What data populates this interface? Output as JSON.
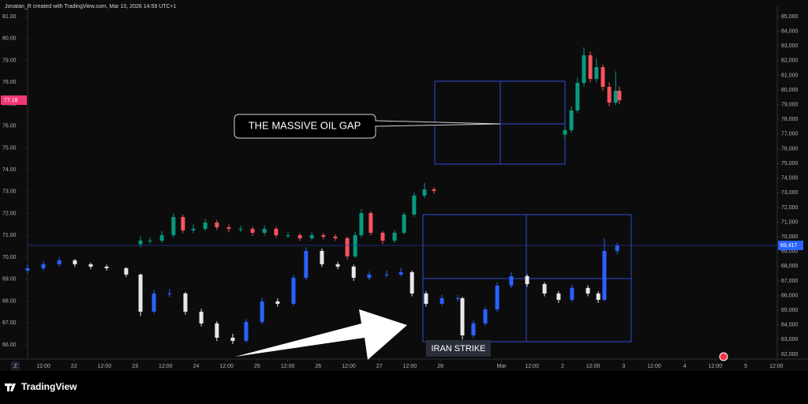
{
  "chart_data": {
    "type": "candlestick",
    "title": "Jonatan_R created with TradingView.com, Mar 10, 2026 14:59 UTC+1",
    "brand": "TradingView",
    "scale_button": "Z",
    "annotations": [
      "THE MASSIVE OIL GAP",
      "IRAN STRIKE"
    ],
    "xlim": [
      0.483,
      25.03
    ],
    "xticks": [
      {
        "value": 1,
        "label": "12:00"
      },
      {
        "value": 2,
        "label": "22"
      },
      {
        "value": 3,
        "label": "12:00"
      },
      {
        "value": 4,
        "label": "23"
      },
      {
        "value": 5,
        "label": "12:00"
      },
      {
        "value": 6,
        "label": "24"
      },
      {
        "value": 7,
        "label": "12:00"
      },
      {
        "value": 8,
        "label": "25"
      },
      {
        "value": 9,
        "label": "12:00"
      },
      {
        "value": 10,
        "label": "26"
      },
      {
        "value": 11,
        "label": "12:00"
      },
      {
        "value": 12,
        "label": "27"
      },
      {
        "value": 13,
        "label": "12:00"
      },
      {
        "value": 14,
        "label": "28"
      },
      {
        "value": 16,
        "label": "Mar"
      },
      {
        "value": 17,
        "label": "12:00"
      },
      {
        "value": 18,
        "label": "2"
      },
      {
        "value": 19,
        "label": "12:00"
      },
      {
        "value": 20,
        "label": "3"
      },
      {
        "value": 21,
        "label": "12:00"
      },
      {
        "value": 22,
        "label": "4"
      },
      {
        "value": 23,
        "label": "12:00"
      },
      {
        "value": 24,
        "label": "5"
      },
      {
        "value": 25,
        "label": "12:00"
      }
    ],
    "ylim": [
      65.35,
      81.47
    ],
    "yticks": [
      {
        "value": 66,
        "label": "66.00"
      },
      {
        "value": 67,
        "label": "67.00"
      },
      {
        "value": 68,
        "label": "68.00"
      },
      {
        "value": 69,
        "label": "69.00"
      },
      {
        "value": 70,
        "label": "70.00"
      },
      {
        "value": 71,
        "label": "71.00"
      },
      {
        "value": 72,
        "label": "72.00"
      },
      {
        "value": 73,
        "label": "73.00"
      },
      {
        "value": 74,
        "label": "74.00"
      },
      {
        "value": 75,
        "label": "75.00"
      },
      {
        "value": 76,
        "label": "76.00"
      },
      {
        "value": 77,
        "label": "77.00"
      },
      {
        "value": 78,
        "label": "78.00"
      },
      {
        "value": 79,
        "label": "79.00"
      },
      {
        "value": 80,
        "label": "80.00"
      },
      {
        "value": 81,
        "label": "81.00"
      }
    ],
    "y2lim": [
      61677,
      85699
    ],
    "y2ticks": [
      {
        "value": 62000,
        "label": "62,000"
      },
      {
        "value": 63000,
        "label": "63,000"
      },
      {
        "value": 64000,
        "label": "64,000"
      },
      {
        "value": 65000,
        "label": "65,000"
      },
      {
        "value": 66000,
        "label": "66,000"
      },
      {
        "value": 67000,
        "label": "67,000"
      },
      {
        "value": 68000,
        "label": "68,000"
      },
      {
        "value": 69000,
        "label": "69,000"
      },
      {
        "value": 70000,
        "label": "70,000"
      },
      {
        "value": 71000,
        "label": "71,000"
      },
      {
        "value": 72000,
        "label": "72,000"
      },
      {
        "value": 73000,
        "label": "73,000"
      },
      {
        "value": 74000,
        "label": "74,000"
      },
      {
        "value": 75000,
        "label": "75,000"
      },
      {
        "value": 76000,
        "label": "76,000"
      },
      {
        "value": 77000,
        "label": "77,000"
      },
      {
        "value": 78000,
        "label": "78,000"
      },
      {
        "value": 79000,
        "label": "79,000"
      },
      {
        "value": 80000,
        "label": "80,000"
      },
      {
        "value": 81000,
        "label": "81,000"
      },
      {
        "value": 82000,
        "label": "82,000"
      },
      {
        "value": 83000,
        "label": "83,000"
      },
      {
        "value": 84000,
        "label": "84,000"
      },
      {
        "value": 85000,
        "label": "85,000"
      }
    ],
    "series": [
      {
        "axis": "y",
        "up_color": "#089981",
        "down_color": "#f7525f",
        "last_price": 77.18,
        "x": [
          4.18,
          4.49,
          4.88,
          5.26,
          5.57,
          5.91,
          6.3,
          6.68,
          7.07,
          7.46,
          7.85,
          8.24,
          8.62,
          9.01,
          9.4,
          9.79,
          10.17,
          10.56,
          10.95,
          11.21,
          11.41,
          11.72,
          12.11,
          12.5,
          12.81,
          13.14,
          13.48,
          13.79,
          18.08,
          18.29,
          18.49,
          18.7,
          18.91,
          19.11,
          19.32,
          19.53,
          19.74,
          19.86
        ],
        "ohlc": [
          [
            70.6,
            70.95,
            70.45,
            70.76
          ],
          [
            70.76,
            70.9,
            70.6,
            70.76
          ],
          [
            70.76,
            71.2,
            70.65,
            71.01
          ],
          [
            71.01,
            72.0,
            70.9,
            71.84
          ],
          [
            71.84,
            71.95,
            71.1,
            71.23
          ],
          [
            71.23,
            71.5,
            71.1,
            71.3
          ],
          [
            71.3,
            71.75,
            71.2,
            71.59
          ],
          [
            71.59,
            71.7,
            71.25,
            71.37
          ],
          [
            71.37,
            71.5,
            71.15,
            71.3
          ],
          [
            71.3,
            71.45,
            71.15,
            71.3
          ],
          [
            71.3,
            71.4,
            70.98,
            71.12
          ],
          [
            71.12,
            71.45,
            71.0,
            71.3
          ],
          [
            71.3,
            71.4,
            70.9,
            71.01
          ],
          [
            71.01,
            71.15,
            70.88,
            71.01
          ],
          [
            71.01,
            71.1,
            70.75,
            70.87
          ],
          [
            70.87,
            71.15,
            70.78,
            71.01
          ],
          [
            71.01,
            71.1,
            70.82,
            70.94
          ],
          [
            70.94,
            71.05,
            70.75,
            70.87
          ],
          [
            70.87,
            70.95,
            69.9,
            70.04
          ],
          [
            70.04,
            71.15,
            69.95,
            71.01
          ],
          [
            71.01,
            72.2,
            70.9,
            72.02
          ],
          [
            72.02,
            72.1,
            71.0,
            71.12
          ],
          [
            71.12,
            71.2,
            70.6,
            70.76
          ],
          [
            70.76,
            71.25,
            70.65,
            71.12
          ],
          [
            71.12,
            72.05,
            71.05,
            71.95
          ],
          [
            71.95,
            72.95,
            71.85,
            72.82
          ],
          [
            72.82,
            73.4,
            72.7,
            73.1
          ],
          [
            73.1,
            73.2,
            72.9,
            73.03
          ],
          [
            75.6,
            76.0,
            75.4,
            75.81
          ],
          [
            75.81,
            76.9,
            75.7,
            76.71
          ],
          [
            76.71,
            78.2,
            76.6,
            77.97
          ],
          [
            77.97,
            79.6,
            77.8,
            79.23
          ],
          [
            79.23,
            79.4,
            78.0,
            78.15
          ],
          [
            78.15,
            79.1,
            78.0,
            78.69
          ],
          [
            78.69,
            78.8,
            77.6,
            77.79
          ],
          [
            77.79,
            78.0,
            76.9,
            77.07
          ],
          [
            77.07,
            78.5,
            76.95,
            77.61
          ],
          [
            77.61,
            77.8,
            77.0,
            77.18
          ]
        ]
      },
      {
        "axis": "y2",
        "up_color": "#2962ff",
        "down_color": "#e8e8e8",
        "last_price": {
          "value": 69417,
          "label": "69,417"
        },
        "x": [
          0.48,
          1.0,
          1.52,
          2.03,
          2.55,
          3.07,
          3.71,
          4.18,
          4.62,
          5.13,
          5.65,
          6.17,
          6.68,
          7.2,
          7.64,
          8.16,
          8.67,
          9.19,
          9.6,
          10.12,
          10.64,
          11.16,
          11.67,
          12.24,
          12.71,
          13.07,
          13.53,
          14.05,
          14.57,
          14.72,
          15.08,
          15.47,
          15.86,
          16.32,
          16.84,
          17.41,
          17.87,
          18.31,
          18.83,
          19.17,
          19.37,
          19.79
        ],
        "ohlc": [
          [
            67700,
            68100,
            67500,
            67860
          ],
          [
            67860,
            68350,
            67700,
            68130
          ],
          [
            68130,
            68600,
            67950,
            68400
          ],
          [
            68400,
            68500,
            67950,
            68130
          ],
          [
            68130,
            68250,
            67800,
            67970
          ],
          [
            67970,
            68100,
            67700,
            67860
          ],
          [
            67860,
            67950,
            67250,
            67430
          ],
          [
            67430,
            67500,
            64600,
            64900
          ],
          [
            64900,
            66400,
            64750,
            66140
          ],
          [
            66140,
            66450,
            65900,
            66140
          ],
          [
            66140,
            66250,
            64700,
            64900
          ],
          [
            64900,
            65100,
            63900,
            64100
          ],
          [
            64100,
            64250,
            62900,
            63130
          ],
          [
            63130,
            63400,
            62700,
            62910
          ],
          [
            62910,
            64400,
            62800,
            64200
          ],
          [
            64200,
            65850,
            64050,
            65600
          ],
          [
            65600,
            65800,
            65250,
            65440
          ],
          [
            65440,
            67400,
            65300,
            67210
          ],
          [
            67210,
            69300,
            67050,
            69040
          ],
          [
            69040,
            69200,
            67950,
            68130
          ],
          [
            68130,
            68300,
            67800,
            67970
          ],
          [
            67970,
            68100,
            67000,
            67210
          ],
          [
            67210,
            67650,
            67050,
            67430
          ],
          [
            67430,
            67700,
            67250,
            67430
          ],
          [
            67430,
            67900,
            67300,
            67590
          ],
          [
            67590,
            67700,
            65950,
            66140
          ],
          [
            66140,
            66300,
            65250,
            65440
          ],
          [
            65440,
            66050,
            65300,
            65820
          ],
          [
            65820,
            66050,
            65600,
            65820
          ],
          [
            65820,
            65900,
            63000,
            63290
          ],
          [
            63290,
            64300,
            63100,
            64100
          ],
          [
            64100,
            65250,
            63950,
            65060
          ],
          [
            65060,
            66900,
            64900,
            66680
          ],
          [
            66680,
            67600,
            66500,
            67320
          ],
          [
            67320,
            67450,
            66600,
            66780
          ],
          [
            66780,
            66900,
            65950,
            66140
          ],
          [
            66140,
            66300,
            65500,
            65710
          ],
          [
            65710,
            66750,
            65550,
            66520
          ],
          [
            66520,
            66700,
            65950,
            66140
          ],
          [
            66140,
            66300,
            65500,
            65710
          ],
          [
            65710,
            69900,
            65600,
            69040
          ],
          [
            69040,
            69600,
            68800,
            69417
          ]
        ]
      }
    ]
  }
}
